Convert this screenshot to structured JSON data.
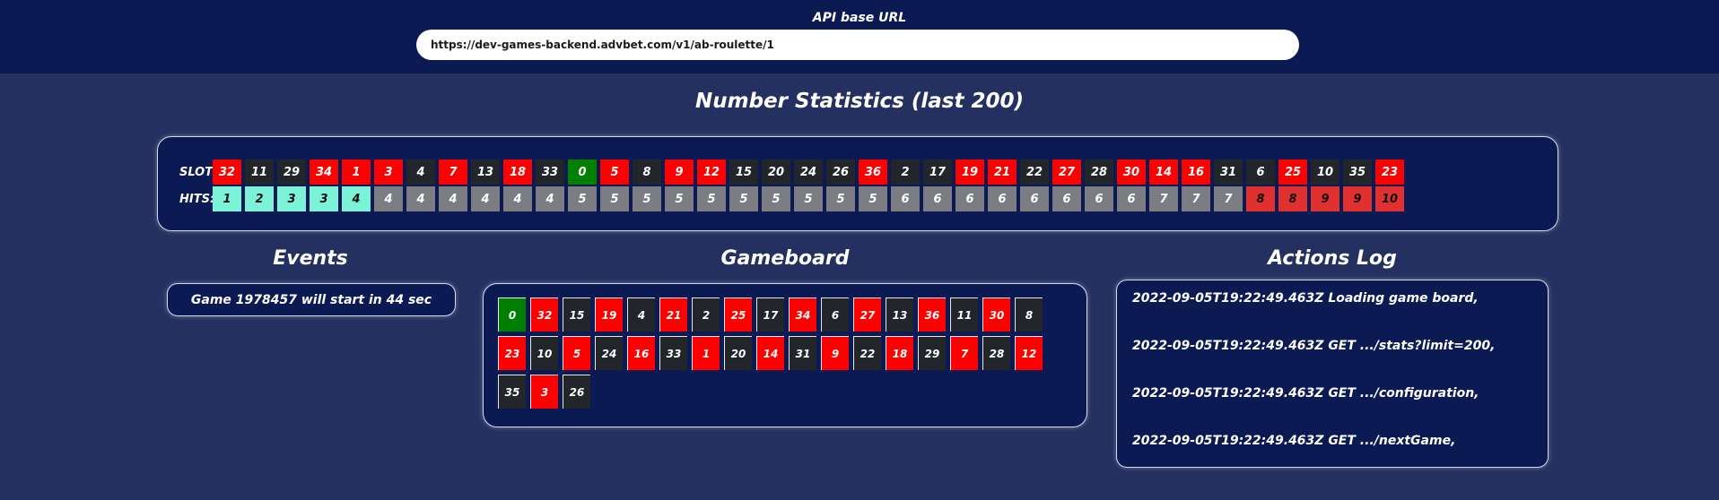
{
  "header": {
    "api_label": "API base URL",
    "api_url": "https://dev-games-backend.advbet.com/v1/ab-roulette/1"
  },
  "stats": {
    "title": "Number Statistics (last 200)",
    "slot_label": "SLOT:",
    "hits_label": "HITS:",
    "slots": [
      {
        "n": "32",
        "color": "red"
      },
      {
        "n": "11",
        "color": "black"
      },
      {
        "n": "29",
        "color": "black"
      },
      {
        "n": "34",
        "color": "red"
      },
      {
        "n": "1",
        "color": "red"
      },
      {
        "n": "3",
        "color": "red"
      },
      {
        "n": "4",
        "color": "black"
      },
      {
        "n": "7",
        "color": "red"
      },
      {
        "n": "13",
        "color": "black"
      },
      {
        "n": "18",
        "color": "red"
      },
      {
        "n": "33",
        "color": "black"
      },
      {
        "n": "0",
        "color": "green"
      },
      {
        "n": "5",
        "color": "red"
      },
      {
        "n": "8",
        "color": "black"
      },
      {
        "n": "9",
        "color": "red"
      },
      {
        "n": "12",
        "color": "red"
      },
      {
        "n": "15",
        "color": "black"
      },
      {
        "n": "20",
        "color": "black"
      },
      {
        "n": "24",
        "color": "black"
      },
      {
        "n": "26",
        "color": "black"
      },
      {
        "n": "36",
        "color": "red"
      },
      {
        "n": "2",
        "color": "black"
      },
      {
        "n": "17",
        "color": "black"
      },
      {
        "n": "19",
        "color": "red"
      },
      {
        "n": "21",
        "color": "red"
      },
      {
        "n": "22",
        "color": "black"
      },
      {
        "n": "27",
        "color": "red"
      },
      {
        "n": "28",
        "color": "black"
      },
      {
        "n": "30",
        "color": "red"
      },
      {
        "n": "14",
        "color": "red"
      },
      {
        "n": "16",
        "color": "red"
      },
      {
        "n": "31",
        "color": "black"
      },
      {
        "n": "6",
        "color": "black"
      },
      {
        "n": "25",
        "color": "red"
      },
      {
        "n": "10",
        "color": "black"
      },
      {
        "n": "35",
        "color": "black"
      },
      {
        "n": "23",
        "color": "red"
      }
    ],
    "hits": [
      {
        "n": "1",
        "level": "cold"
      },
      {
        "n": "2",
        "level": "cold"
      },
      {
        "n": "3",
        "level": "cold"
      },
      {
        "n": "3",
        "level": "cold"
      },
      {
        "n": "4",
        "level": "cold"
      },
      {
        "n": "4",
        "level": "neutral"
      },
      {
        "n": "4",
        "level": "neutral"
      },
      {
        "n": "4",
        "level": "neutral"
      },
      {
        "n": "4",
        "level": "neutral"
      },
      {
        "n": "4",
        "level": "neutral"
      },
      {
        "n": "4",
        "level": "neutral"
      },
      {
        "n": "5",
        "level": "neutral"
      },
      {
        "n": "5",
        "level": "neutral"
      },
      {
        "n": "5",
        "level": "neutral"
      },
      {
        "n": "5",
        "level": "neutral"
      },
      {
        "n": "5",
        "level": "neutral"
      },
      {
        "n": "5",
        "level": "neutral"
      },
      {
        "n": "5",
        "level": "neutral"
      },
      {
        "n": "5",
        "level": "neutral"
      },
      {
        "n": "5",
        "level": "neutral"
      },
      {
        "n": "5",
        "level": "neutral"
      },
      {
        "n": "6",
        "level": "neutral"
      },
      {
        "n": "6",
        "level": "neutral"
      },
      {
        "n": "6",
        "level": "neutral"
      },
      {
        "n": "6",
        "level": "neutral"
      },
      {
        "n": "6",
        "level": "neutral"
      },
      {
        "n": "6",
        "level": "neutral"
      },
      {
        "n": "6",
        "level": "neutral"
      },
      {
        "n": "6",
        "level": "neutral"
      },
      {
        "n": "7",
        "level": "neutral"
      },
      {
        "n": "7",
        "level": "neutral"
      },
      {
        "n": "7",
        "level": "neutral"
      },
      {
        "n": "8",
        "level": "hot"
      },
      {
        "n": "8",
        "level": "hot"
      },
      {
        "n": "9",
        "level": "hot"
      },
      {
        "n": "9",
        "level": "hot"
      },
      {
        "n": "10",
        "level": "hot"
      }
    ]
  },
  "events": {
    "title": "Events",
    "message": "Game 1978457 will start in 44 sec"
  },
  "gameboard": {
    "title": "Gameboard",
    "cells": [
      {
        "n": "0",
        "color": "green"
      },
      {
        "n": "32",
        "color": "red"
      },
      {
        "n": "15",
        "color": "black"
      },
      {
        "n": "19",
        "color": "red"
      },
      {
        "n": "4",
        "color": "black"
      },
      {
        "n": "21",
        "color": "red"
      },
      {
        "n": "2",
        "color": "black"
      },
      {
        "n": "25",
        "color": "red"
      },
      {
        "n": "17",
        "color": "black"
      },
      {
        "n": "34",
        "color": "red"
      },
      {
        "n": "6",
        "color": "black"
      },
      {
        "n": "27",
        "color": "red"
      },
      {
        "n": "13",
        "color": "black"
      },
      {
        "n": "36",
        "color": "red"
      },
      {
        "n": "11",
        "color": "black"
      },
      {
        "n": "30",
        "color": "red"
      },
      {
        "n": "8",
        "color": "black"
      },
      {
        "n": "23",
        "color": "red"
      },
      {
        "n": "10",
        "color": "black"
      },
      {
        "n": "5",
        "color": "red"
      },
      {
        "n": "24",
        "color": "black"
      },
      {
        "n": "16",
        "color": "red"
      },
      {
        "n": "33",
        "color": "black"
      },
      {
        "n": "1",
        "color": "red"
      },
      {
        "n": "20",
        "color": "black"
      },
      {
        "n": "14",
        "color": "red"
      },
      {
        "n": "31",
        "color": "black"
      },
      {
        "n": "9",
        "color": "red"
      },
      {
        "n": "22",
        "color": "black"
      },
      {
        "n": "18",
        "color": "red"
      },
      {
        "n": "29",
        "color": "black"
      },
      {
        "n": "7",
        "color": "red"
      },
      {
        "n": "28",
        "color": "black"
      },
      {
        "n": "12",
        "color": "red"
      },
      {
        "n": "35",
        "color": "black"
      },
      {
        "n": "3",
        "color": "red"
      },
      {
        "n": "26",
        "color": "black"
      }
    ]
  },
  "log": {
    "title": "Actions Log",
    "entries": [
      "2022-09-05T19:22:49.463Z Loading game board,",
      "2022-09-05T19:22:49.463Z GET .../stats?limit=200,",
      "2022-09-05T19:22:49.463Z GET .../configuration,",
      "2022-09-05T19:22:49.463Z GET .../nextGame,"
    ]
  },
  "colors": {
    "red": "#ff0000",
    "black": "#222529",
    "green": "#008000",
    "hits_cold": "#7cf3d8",
    "hits_neutral": "#7b7d82",
    "hits_hot": "#e03030",
    "panel_bg": "#0b1a52",
    "page_bg": "#233060"
  }
}
